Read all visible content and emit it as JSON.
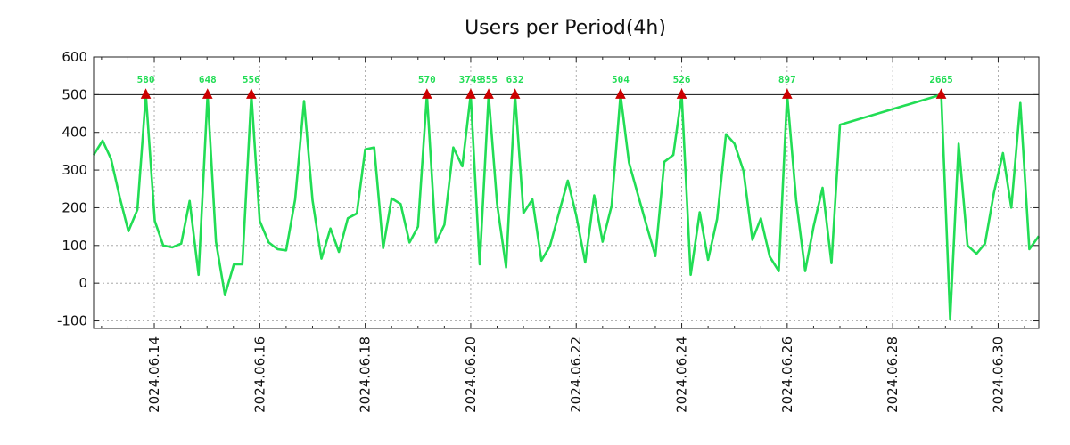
{
  "chart_data": {
    "type": "line",
    "title": "Users per Period(4h)",
    "xlabel": "",
    "ylabel": "",
    "ylim": [
      -120,
      600
    ],
    "yticks": [
      -100,
      0,
      100,
      200,
      300,
      400,
      500,
      600
    ],
    "ytick_labels": [
      "-100",
      "0",
      "100",
      "200",
      "300",
      "400",
      "500",
      "600"
    ],
    "xlim_days": [
      12.85,
      30.77
    ],
    "xticks": [
      14,
      16,
      18,
      20,
      22,
      24,
      26,
      28,
      30
    ],
    "xtick_labels": [
      "2024.06.14",
      "2024.06.16",
      "2024.06.18",
      "2024.06.20",
      "2024.06.22",
      "2024.06.24",
      "2024.06.26",
      "2024.06.28",
      "2024.06.30"
    ],
    "cap_value": 500,
    "line_color": "#22dd55",
    "marker_color": "#cc0000",
    "series": [
      {
        "name": "users",
        "points": [
          [
            12.85,
            340
          ],
          [
            13.02,
            378
          ],
          [
            13.18,
            330
          ],
          [
            13.35,
            225
          ],
          [
            13.51,
            138
          ],
          [
            13.68,
            195
          ],
          [
            13.84,
            500
          ],
          [
            14.01,
            165
          ],
          [
            14.17,
            100
          ],
          [
            14.34,
            95
          ],
          [
            14.51,
            105
          ],
          [
            14.67,
            218
          ],
          [
            14.84,
            22
          ],
          [
            15.01,
            500
          ],
          [
            15.17,
            110
          ],
          [
            15.34,
            -32
          ],
          [
            15.51,
            50
          ],
          [
            15.67,
            50
          ],
          [
            15.84,
            500
          ],
          [
            16.0,
            165
          ],
          [
            16.17,
            108
          ],
          [
            16.34,
            90
          ],
          [
            16.5,
            87
          ],
          [
            16.67,
            222
          ],
          [
            16.84,
            483
          ],
          [
            17.0,
            220
          ],
          [
            17.17,
            65
          ],
          [
            17.34,
            145
          ],
          [
            17.5,
            83
          ],
          [
            17.67,
            172
          ],
          [
            17.84,
            185
          ],
          [
            18.0,
            355
          ],
          [
            18.17,
            360
          ],
          [
            18.34,
            93
          ],
          [
            18.5,
            225
          ],
          [
            18.67,
            210
          ],
          [
            18.84,
            108
          ],
          [
            19.0,
            150
          ],
          [
            19.17,
            500
          ],
          [
            19.34,
            108
          ],
          [
            19.5,
            155
          ],
          [
            19.67,
            360
          ],
          [
            19.84,
            310
          ],
          [
            20.0,
            500
          ],
          [
            20.17,
            50
          ],
          [
            20.34,
            500
          ],
          [
            20.5,
            210
          ],
          [
            20.67,
            42
          ],
          [
            20.84,
            500
          ],
          [
            21.0,
            186
          ],
          [
            21.17,
            222
          ],
          [
            21.34,
            60
          ],
          [
            21.5,
            98
          ],
          [
            21.67,
            185
          ],
          [
            21.84,
            272
          ],
          [
            22.0,
            180
          ],
          [
            22.17,
            55
          ],
          [
            22.34,
            233
          ],
          [
            22.5,
            110
          ],
          [
            22.67,
            205
          ],
          [
            22.84,
            500
          ],
          [
            23.0,
            320
          ],
          [
            23.17,
            235
          ],
          [
            23.34,
            150
          ],
          [
            23.5,
            72
          ],
          [
            23.67,
            322
          ],
          [
            23.84,
            340
          ],
          [
            24.0,
            500
          ],
          [
            24.17,
            22
          ],
          [
            24.34,
            188
          ],
          [
            24.5,
            62
          ],
          [
            24.67,
            170
          ],
          [
            24.84,
            395
          ],
          [
            25.0,
            370
          ],
          [
            25.17,
            298
          ],
          [
            25.34,
            115
          ],
          [
            25.5,
            172
          ],
          [
            25.67,
            70
          ],
          [
            25.84,
            32
          ],
          [
            26.0,
            500
          ],
          [
            26.17,
            220
          ],
          [
            26.34,
            32
          ],
          [
            26.5,
            150
          ],
          [
            26.67,
            253
          ],
          [
            26.84,
            53
          ],
          [
            27.0,
            420
          ],
          [
            28.92,
            500
          ],
          [
            29.09,
            -95
          ],
          [
            29.25,
            370
          ],
          [
            29.42,
            100
          ],
          [
            29.59,
            78
          ],
          [
            29.75,
            105
          ],
          [
            29.92,
            240
          ],
          [
            30.09,
            345
          ],
          [
            30.25,
            200
          ],
          [
            30.42,
            478
          ],
          [
            30.59,
            90
          ],
          [
            30.77,
            125
          ]
        ]
      }
    ],
    "capped_peaks": [
      {
        "x": 13.84,
        "label": "580"
      },
      {
        "x": 15.01,
        "label": "648"
      },
      {
        "x": 15.84,
        "label": "556"
      },
      {
        "x": 19.17,
        "label": "570"
      },
      {
        "x": 20.0,
        "label": "3749"
      },
      {
        "x": 20.34,
        "label": "855"
      },
      {
        "x": 20.84,
        "label": "632"
      },
      {
        "x": 22.84,
        "label": "504"
      },
      {
        "x": 24.0,
        "label": "526"
      },
      {
        "x": 26.0,
        "label": "897"
      },
      {
        "x": 28.92,
        "label": "2665"
      }
    ]
  }
}
